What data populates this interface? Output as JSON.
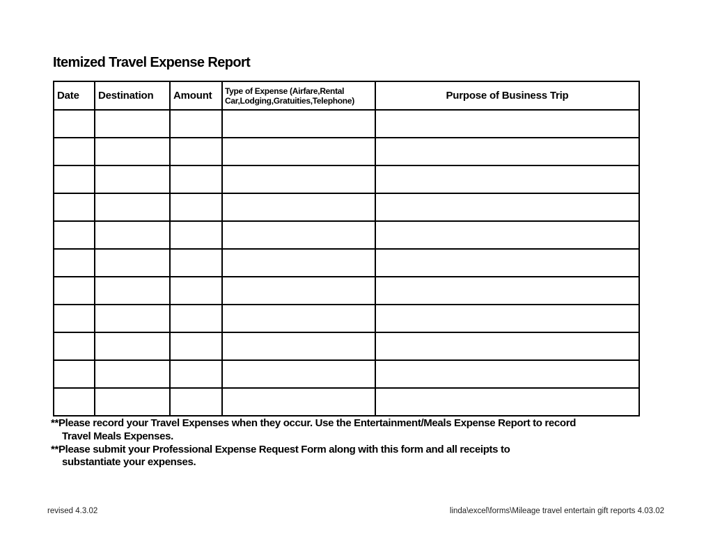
{
  "title": "Itemized Travel Expense Report",
  "table": {
    "columns": [
      {
        "label": "Date"
      },
      {
        "label": "Destination"
      },
      {
        "label": "Amount"
      },
      {
        "label": "Type of Expense (Airfare,Rental Car,Lodging,Gratuities,Telephone)"
      },
      {
        "label": "Purpose of Business Trip"
      }
    ],
    "empty_row_count": 11
  },
  "notes": {
    "lines": [
      {
        "text": "**Please record your Travel Expenses when they occur. Use the Entertainment/Meals Expense Report to record",
        "indent": false
      },
      {
        "text": "Travel Meals Expenses.",
        "indent": true
      },
      {
        "text": "**Please submit your Professional Expense Request Form along with this form and all receipts to",
        "indent": false
      },
      {
        "text": "substantiate your expenses.",
        "indent": true
      }
    ]
  },
  "footer": {
    "revised": "revised 4.3.02",
    "file_path": "linda\\excel\\forms\\Mileage travel entertain gift reports 4.03.02"
  }
}
